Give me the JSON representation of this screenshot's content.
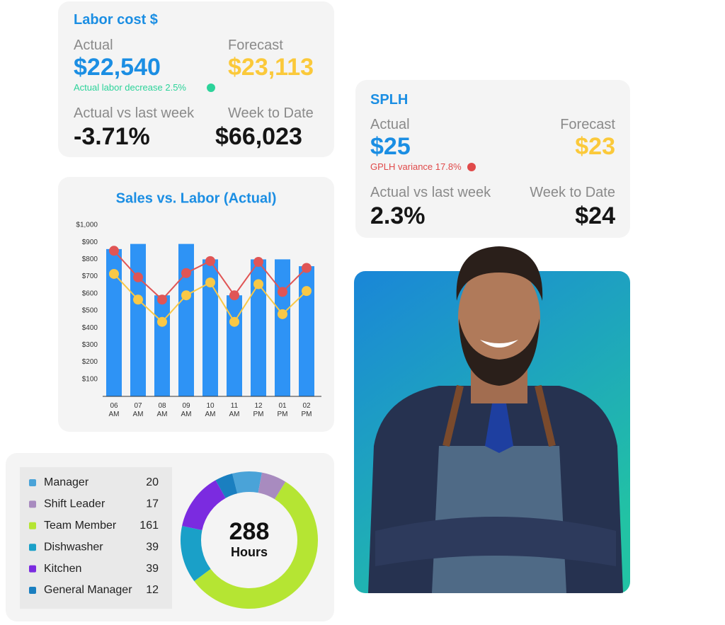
{
  "labor_cost": {
    "title": "Labor cost $",
    "actual_label": "Actual",
    "actual": "$22,540",
    "forecast_label": "Forecast",
    "forecast": "$23,113",
    "note": "Actual labor decrease 2.5%",
    "vs_last_week_label": "Actual vs last week",
    "vs_last_week": "-3.71%",
    "week_to_date_label": "Week to Date",
    "week_to_date": "$66,023"
  },
  "splh": {
    "title": "SPLH",
    "actual_label": "Actual",
    "actual": "$25",
    "forecast_label": "Forecast",
    "forecast": "$23",
    "note": "GPLH variance 17.8%",
    "vs_last_week_label": "Actual vs last week",
    "vs_last_week": "2.3%",
    "week_to_date_label": "Week to Date",
    "week_to_date": "$24"
  },
  "chart_data": [
    {
      "type": "bar",
      "title": "Sales vs. Labor (Actual)",
      "categories": [
        "06 AM",
        "07 AM",
        "08 AM",
        "09 AM",
        "10 AM",
        "11 AM",
        "12 PM",
        "01 PM",
        "02 PM"
      ],
      "series": [
        {
          "type": "bar",
          "color": "#2e93f5",
          "values": [
            860,
            890,
            590,
            890,
            800,
            590,
            800,
            800,
            760
          ]
        },
        {
          "type": "line",
          "color": "#e05555",
          "values": [
            850,
            695,
            565,
            720,
            790,
            590,
            785,
            610,
            750
          ]
        },
        {
          "type": "line",
          "color": "#f9c846",
          "values": [
            715,
            565,
            435,
            590,
            665,
            435,
            655,
            480,
            615
          ]
        }
      ],
      "ylim": [
        0,
        1000
      ],
      "yticks": [
        {
          "value": 100,
          "label": "$100"
        },
        {
          "value": 200,
          "label": "$200"
        },
        {
          "value": 300,
          "label": "$300"
        },
        {
          "value": 400,
          "label": "$400"
        },
        {
          "value": 500,
          "label": "$500"
        },
        {
          "value": 600,
          "label": "$600"
        },
        {
          "value": 700,
          "label": "$700"
        },
        {
          "value": 800,
          "label": "$800"
        },
        {
          "value": 900,
          "label": "$900"
        },
        {
          "value": 1000,
          "label": "$1,000"
        }
      ],
      "grid": false
    },
    {
      "type": "donut",
      "categories": [
        "Manager",
        "Shift Leader",
        "Team Member",
        "Dishwasher",
        "Kitchen",
        "General Manager"
      ],
      "values": [
        20,
        17,
        161,
        39,
        39,
        12
      ],
      "colors": [
        "#4aa3d8",
        "#a88bbf",
        "#b5e533",
        "#1aa0c8",
        "#7b2be0",
        "#1a7fc0"
      ],
      "center_value": 288,
      "center_label": "Hours"
    }
  ]
}
